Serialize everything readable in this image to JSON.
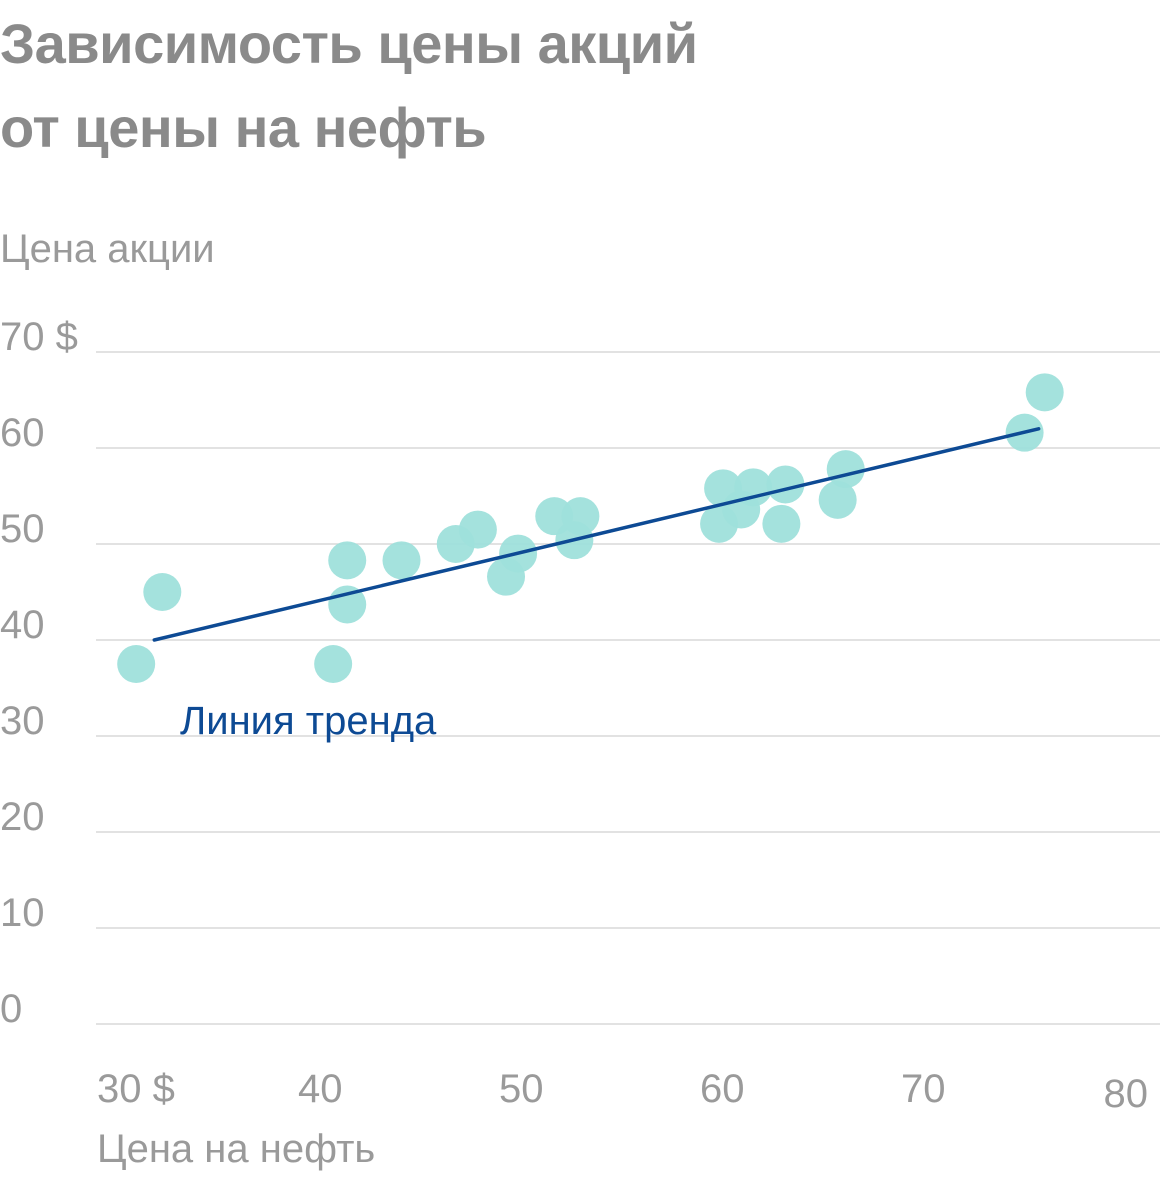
{
  "chart_data": {
    "type": "scatter",
    "title_lines": [
      "Зависимость цены акций",
      "от цены на нефть"
    ],
    "ylabel": "Цена акции",
    "xlabel": "Цена на нефть",
    "xlim": [
      30,
      80
    ],
    "ylim": [
      0,
      70
    ],
    "x_ticks": [
      30,
      40,
      50,
      60,
      70,
      80
    ],
    "x_tick_labels": [
      "30 $",
      "40",
      "50",
      "60",
      "70",
      "80"
    ],
    "y_ticks": [
      0,
      10,
      20,
      30,
      40,
      50,
      60,
      70
    ],
    "y_tick_labels": [
      "0",
      "10",
      "20",
      "30",
      "40",
      "50",
      "60",
      "70 $"
    ],
    "grid": true,
    "series": [
      {
        "points": [
          {
            "x": 31.8,
            "y": 37.5
          },
          {
            "x": 33.1,
            "y": 45.0
          },
          {
            "x": 41.6,
            "y": 37.5
          },
          {
            "x": 42.3,
            "y": 43.7
          },
          {
            "x": 42.3,
            "y": 48.3
          },
          {
            "x": 45.0,
            "y": 48.3
          },
          {
            "x": 47.7,
            "y": 50.0
          },
          {
            "x": 48.8,
            "y": 51.5
          },
          {
            "x": 50.2,
            "y": 46.6
          },
          {
            "x": 50.8,
            "y": 49.0
          },
          {
            "x": 52.6,
            "y": 52.9
          },
          {
            "x": 53.6,
            "y": 50.4
          },
          {
            "x": 53.9,
            "y": 52.9
          },
          {
            "x": 60.8,
            "y": 52.1
          },
          {
            "x": 61.0,
            "y": 55.8
          },
          {
            "x": 61.9,
            "y": 53.6
          },
          {
            "x": 62.5,
            "y": 55.9
          },
          {
            "x": 63.9,
            "y": 52.1
          },
          {
            "x": 64.1,
            "y": 56.2
          },
          {
            "x": 66.7,
            "y": 54.6
          },
          {
            "x": 67.1,
            "y": 57.8
          },
          {
            "x": 76.0,
            "y": 61.6
          },
          {
            "x": 77.0,
            "y": 65.8
          }
        ],
        "color": "#9fe0db"
      }
    ],
    "trend_line": {
      "label": "Линия тренда",
      "color": "#0d4a94",
      "x": [
        32.7,
        76.7
      ],
      "y": [
        40.0,
        62.0
      ]
    }
  }
}
